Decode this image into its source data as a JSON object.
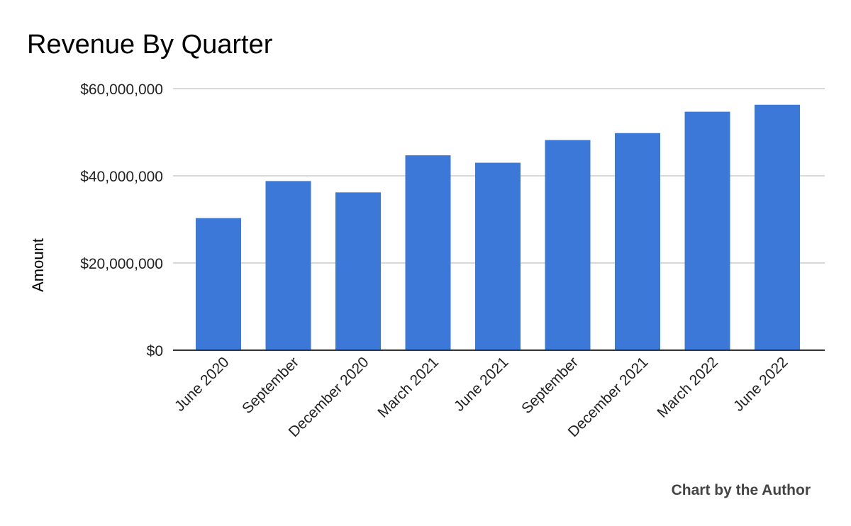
{
  "chart_data": {
    "type": "bar",
    "title": "Revenue By Quarter",
    "xlabel": "",
    "ylabel": "Amount",
    "categories": [
      "June 2020",
      "September",
      "December 2020",
      "March 2021",
      "June 2021",
      "September",
      "December 2021",
      "March 2022",
      "June 2022"
    ],
    "values": [
      30300000,
      38800000,
      36200000,
      44700000,
      43000000,
      48200000,
      49800000,
      54700000,
      56300000
    ],
    "ylim": [
      0,
      60000000
    ],
    "yticks": [
      0,
      20000000,
      40000000,
      60000000
    ],
    "ytick_labels": [
      "$0",
      "$20,000,000",
      "$40,000,000",
      "$60,000,000"
    ],
    "grid": true,
    "legend": "none",
    "bar_color": "#3c78d8"
  },
  "credit": "Chart by the Author"
}
